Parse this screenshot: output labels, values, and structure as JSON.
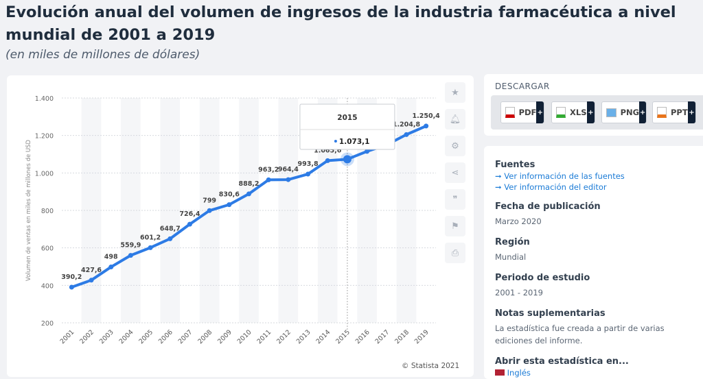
{
  "title": "Evolución anual del volumen de ingresos de la industria farmacéutica a nivel mundial de 2001 a 2019",
  "subtitle": "(en miles de millones de dólares)",
  "chart_data": {
    "type": "line",
    "categories": [
      "2001",
      "2002",
      "2003",
      "2004",
      "2005",
      "2006",
      "2007",
      "2008",
      "2009",
      "2010",
      "2011",
      "2012",
      "2013",
      "2014",
      "2015",
      "2016",
      "2017",
      "2018",
      "2019"
    ],
    "values": [
      390.2,
      427.6,
      498,
      559.9,
      601.2,
      648.7,
      726.4,
      799,
      830.6,
      888.2,
      963.2,
      964.4,
      993.8,
      1065.6,
      1073.1,
      1115,
      1150,
      1204.8,
      1250.4
    ],
    "labels": [
      "390,2",
      "427,6",
      "498",
      "559,9",
      "601,2",
      "648,7",
      "726,4",
      "799",
      "830,6",
      "888,2",
      "963,2",
      "964,4",
      "993,8",
      "1.065,6",
      "",
      "",
      "",
      "1.204,8",
      "1.250,4"
    ],
    "ylabel": "Volumen de ventas en miles de millones de USD",
    "ylim": [
      200,
      1400
    ],
    "yticks": [
      200,
      400,
      600,
      800,
      1000,
      1200,
      1400
    ],
    "ytick_labels": [
      "200",
      "400",
      "600",
      "800",
      "1.000",
      "1.200",
      "1.400"
    ],
    "color": "#2d7be5",
    "tooltip": {
      "year": "2015",
      "value": "1.073,1"
    },
    "credit": "© Statista 2021"
  },
  "tools": [
    "star-icon",
    "bell-icon",
    "gear-icon",
    "share-icon",
    "quote-icon",
    "flag-icon",
    "print-icon"
  ],
  "download": {
    "heading": "DESCARGAR",
    "buttons": [
      "PDF",
      "XLS",
      "PNG",
      "PPT"
    ],
    "plus": "+"
  },
  "info": {
    "sources_h": "Fuentes",
    "link1": "Ver información de las fuentes",
    "link2": "Ver información del editor",
    "pub_h": "Fecha de publicación",
    "pub_v": "Marzo 2020",
    "region_h": "Región",
    "region_v": "Mundial",
    "period_h": "Periodo de estudio",
    "period_v": "2001 - 2019",
    "notes_h": "Notas suplementarias",
    "notes_v": "La estadística fue creada a partir de varias ediciones del informe.",
    "open_h": "Abrir esta estadística en...",
    "open_v": "Inglés"
  }
}
